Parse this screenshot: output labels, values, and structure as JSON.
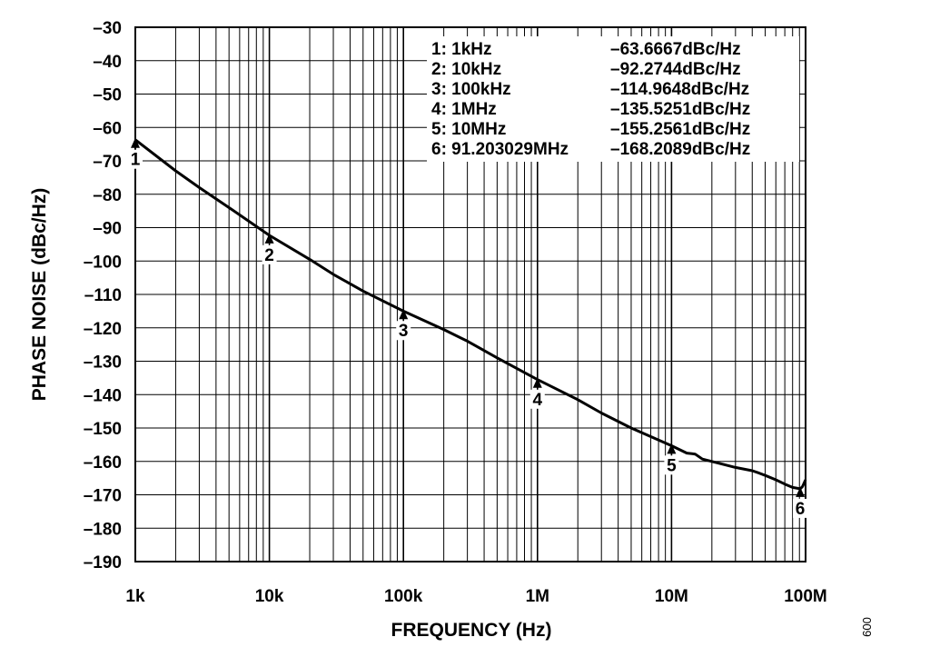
{
  "figure_id": "009",
  "chart_data": {
    "type": "line",
    "title": "",
    "xlabel": "FREQUENCY (Hz)",
    "ylabel": "PHASE NOISE (dBc/Hz)",
    "xscale": "log",
    "xlim": [
      1000,
      100000000
    ],
    "ylim": [
      -190,
      -30
    ],
    "grid": true,
    "legend_position": "top-right",
    "x_tick_values": [
      1000,
      10000,
      100000,
      1000000,
      10000000,
      100000000
    ],
    "x_tick_labels": [
      "1k",
      "10k",
      "100k",
      "1M",
      "10M",
      "100M"
    ],
    "y_tick_values": [
      -30,
      -40,
      -50,
      -60,
      -70,
      -80,
      -90,
      -100,
      -110,
      -120,
      -130,
      -140,
      -150,
      -160,
      -170,
      -180,
      -190
    ],
    "y_tick_labels": [
      "–30",
      "–40",
      "–50",
      "–60",
      "–70",
      "–80",
      "–90",
      "–100",
      "–110",
      "–120",
      "–130",
      "–140",
      "–150",
      "–160",
      "–170",
      "–180",
      "–190"
    ],
    "series": [
      {
        "x": [
          1000,
          2000,
          3000,
          5000,
          10000,
          20000,
          30000,
          50000,
          100000,
          200000,
          300000,
          500000,
          1000000,
          2000000,
          3000000,
          5000000,
          10000000,
          13000000,
          15000000,
          17000000,
          20000000,
          30000000,
          40000000,
          45000000,
          50000000,
          60000000,
          70000000,
          80000000,
          91203029,
          95000000,
          100000000
        ],
        "y": [
          -63.7,
          -73,
          -78,
          -84,
          -92.3,
          -99.5,
          -104,
          -109,
          -115,
          -120.5,
          -124,
          -129,
          -135.5,
          -141.5,
          -145.5,
          -150,
          -155.3,
          -157.5,
          -157.8,
          -159.3,
          -160,
          -161.8,
          -162.8,
          -163.5,
          -164.2,
          -165.5,
          -166.8,
          -167.8,
          -168.2,
          -167.5,
          -165.5
        ]
      }
    ],
    "markers": [
      {
        "id": "1",
        "x": 1000,
        "y": -63.6667
      },
      {
        "id": "2",
        "x": 10000,
        "y": -92.2744
      },
      {
        "id": "3",
        "x": 100000,
        "y": -114.9648
      },
      {
        "id": "4",
        "x": 1000000,
        "y": -135.5251
      },
      {
        "id": "5",
        "x": 10000000,
        "y": -155.2561
      },
      {
        "id": "6",
        "x": 91203029,
        "y": -168.2089
      }
    ],
    "legend": [
      {
        "label": "1: 1kHz",
        "value": "–63.6667dBc/Hz"
      },
      {
        "label": "2: 10kHz",
        "value": "–92.2744dBc/Hz"
      },
      {
        "label": "3: 100kHz",
        "value": "–114.9648dBc/Hz"
      },
      {
        "label": "4: 1MHz",
        "value": "–135.5251dBc/Hz"
      },
      {
        "label": "5: 10MHz",
        "value": "–155.2561dBc/Hz"
      },
      {
        "label": "6: 91.203029MHz",
        "value": "–168.2089dBc/Hz"
      }
    ]
  }
}
